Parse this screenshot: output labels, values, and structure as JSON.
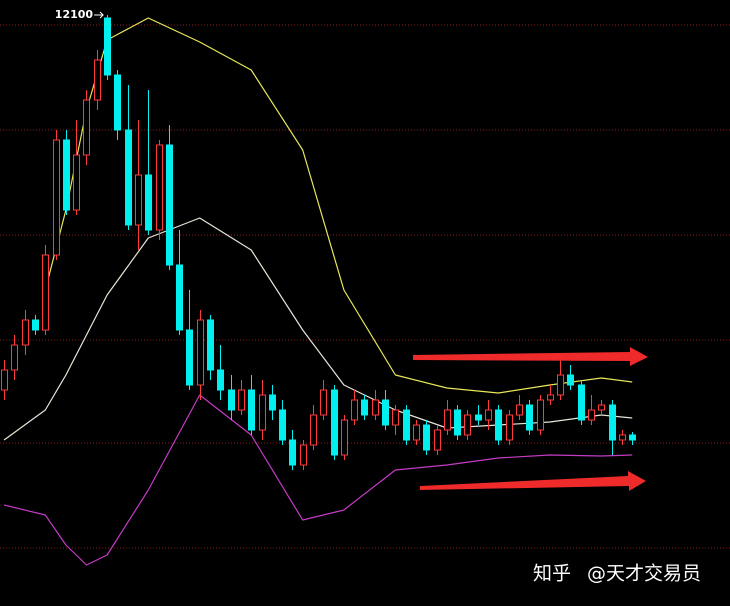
{
  "chart_data": {
    "type": "candlestick",
    "xlim": [
      -0.4,
      70.5
    ],
    "ylim": [
      10918,
      12130
    ],
    "gridlines": [
      12080,
      11870,
      11660,
      11450,
      11244,
      11034
    ],
    "up_color": "#ff3b3b",
    "down_color": "#00f0f0",
    "high_label": 12100,
    "open": [
      11350,
      11390,
      11440,
      11490,
      11470,
      11620,
      11850,
      11710,
      11820,
      11930,
      12094,
      11980,
      11870,
      11680,
      11780,
      11670,
      11840,
      11600,
      11470,
      11360,
      11490,
      11390,
      11350,
      11310,
      11350,
      11270,
      11340,
      11310,
      11250,
      11200,
      11240,
      11300,
      11350,
      11220,
      11290,
      11330,
      11300,
      11330,
      11280,
      11310,
      11250,
      11280,
      11230,
      11270,
      11310,
      11260,
      11300,
      11290,
      11310,
      11250,
      11300,
      11320,
      11270,
      11330,
      11340,
      11380,
      11360,
      11290,
      11310,
      11320,
      11250,
      11260
    ],
    "high": [
      11410,
      11460,
      11510,
      11500,
      11640,
      11870,
      11870,
      11890,
      11950,
      12030,
      12100,
      11990,
      11960,
      11890,
      11950,
      11850,
      11880,
      11670,
      11550,
      11510,
      11500,
      11440,
      11380,
      11370,
      11380,
      11370,
      11360,
      11330,
      11270,
      11250,
      11320,
      11370,
      11360,
      11300,
      11350,
      11340,
      11350,
      11350,
      11320,
      11320,
      11290,
      11290,
      11280,
      11330,
      11320,
      11310,
      11320,
      11330,
      11320,
      11310,
      11340,
      11330,
      11340,
      11360,
      11410,
      11400,
      11370,
      11340,
      11330,
      11330,
      11270,
      11266
    ],
    "low": [
      11330,
      11370,
      11420,
      11460,
      11460,
      11610,
      11700,
      11700,
      11800,
      11910,
      11970,
      11850,
      11670,
      11630,
      11660,
      11650,
      11590,
      11460,
      11350,
      11330,
      11370,
      11330,
      11290,
      11300,
      11260,
      11250,
      11290,
      11240,
      11190,
      11190,
      11230,
      11290,
      11210,
      11210,
      11280,
      11290,
      11290,
      11270,
      11260,
      11240,
      11240,
      11220,
      11220,
      11260,
      11250,
      11250,
      11280,
      11270,
      11240,
      11240,
      11290,
      11260,
      11260,
      11320,
      11330,
      11350,
      11280,
      11280,
      11300,
      11220,
      11240,
      11240
    ],
    "close": [
      11390,
      11440,
      11490,
      11470,
      11620,
      11850,
      11710,
      11820,
      11930,
      12010,
      11980,
      11870,
      11680,
      11780,
      11670,
      11840,
      11600,
      11470,
      11360,
      11490,
      11390,
      11350,
      11310,
      11350,
      11270,
      11340,
      11310,
      11250,
      11200,
      11240,
      11300,
      11350,
      11220,
      11290,
      11330,
      11300,
      11330,
      11280,
      11310,
      11250,
      11280,
      11230,
      11270,
      11310,
      11260,
      11300,
      11290,
      11310,
      11250,
      11300,
      11320,
      11270,
      11330,
      11340,
      11380,
      11360,
      11290,
      11310,
      11320,
      11250,
      11260,
      11250
    ],
    "series": [
      {
        "color": "#e8e85a",
        "x": [
          0,
          4,
          6,
          8,
          10,
          14,
          19,
          24,
          29,
          33,
          38,
          43,
          48,
          53,
          58,
          61
        ],
        "values": [
          null,
          11550,
          11710,
          11910,
          12050,
          12094,
          12046,
          11990,
          11830,
          11550,
          11380,
          11354,
          11344,
          11360,
          11374,
          11366
        ]
      },
      {
        "color": "#e6e6d8",
        "x": [
          0,
          4,
          6,
          8,
          10,
          14,
          19,
          24,
          29,
          33,
          38,
          43,
          48,
          53,
          58,
          61
        ],
        "values": [
          11250,
          11310,
          11380,
          11460,
          11540,
          11654,
          11694,
          11630,
          11470,
          11360,
          11310,
          11274,
          11280,
          11286,
          11300,
          11294
        ]
      },
      {
        "color": "#c43cc4",
        "x": [
          0,
          4,
          6,
          8,
          10,
          14,
          19,
          24,
          29,
          33,
          38,
          43,
          48,
          53,
          58,
          61
        ],
        "values": [
          11120,
          11100,
          11040,
          11000,
          11020,
          11150,
          11340,
          11260,
          11090,
          11110,
          11190,
          11200,
          11214,
          11220,
          11218,
          11220
        ]
      }
    ],
    "watermark": [
      "知乎",
      "@天才交易员"
    ]
  }
}
